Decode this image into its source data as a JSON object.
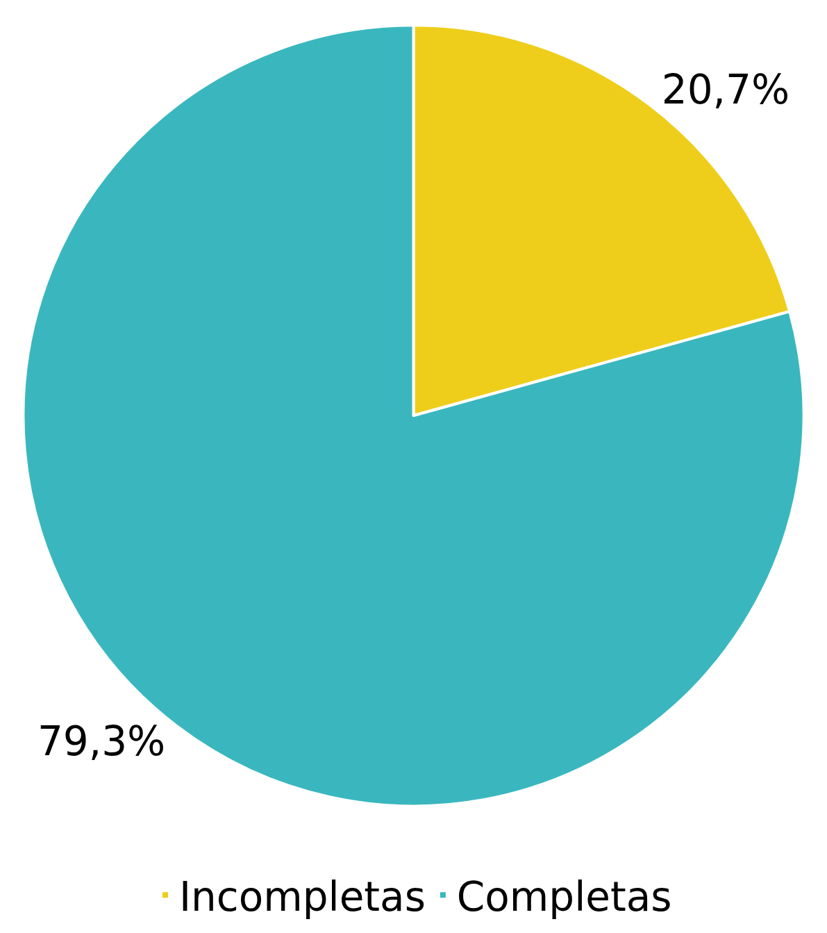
{
  "chart_data": {
    "type": "pie",
    "categories": [
      "Incompletas",
      "Completas"
    ],
    "values": [
      20.7,
      79.3
    ],
    "colors": [
      "#eece1a",
      "#3ab7be"
    ],
    "value_labels": [
      "20,7%",
      "79,3%"
    ],
    "legend": "bottom"
  }
}
